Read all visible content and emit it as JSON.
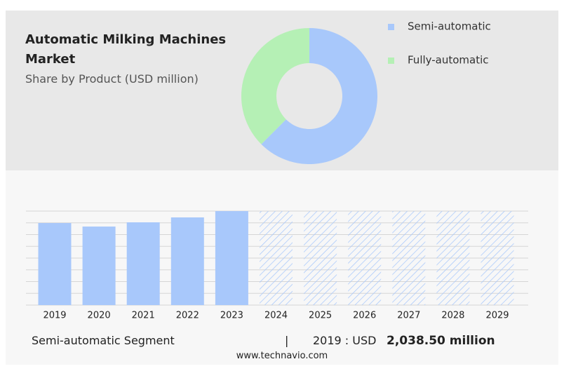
{
  "chart_data": [
    {
      "type": "pie",
      "title": "Automatic Milking Machines Market",
      "subtitle": "Share by Product (USD million)",
      "donut": true,
      "series": [
        {
          "name": "Semi-automatic",
          "color": "#a8c8fb",
          "values": [
            62.5
          ]
        },
        {
          "name": "Fully-automatic",
          "color": "#b5f0b5",
          "values": [
            37.5
          ]
        }
      ]
    },
    {
      "type": "bar",
      "categories": [
        "2019",
        "2020",
        "2021",
        "2022",
        "2023",
        "2024",
        "2025",
        "2026",
        "2027",
        "2028",
        "2029"
      ],
      "values": [
        2038.5,
        1951,
        2056,
        2178,
        2335,
        null,
        null,
        null,
        null,
        null,
        null
      ],
      "color": "#a8c8fb",
      "grid": true
    }
  ],
  "footer": {
    "segment": "Semi-automatic Segment",
    "separator": "|",
    "label": "2019 : USD",
    "value": "2,038.50 million",
    "site": "www.technavio.com"
  }
}
